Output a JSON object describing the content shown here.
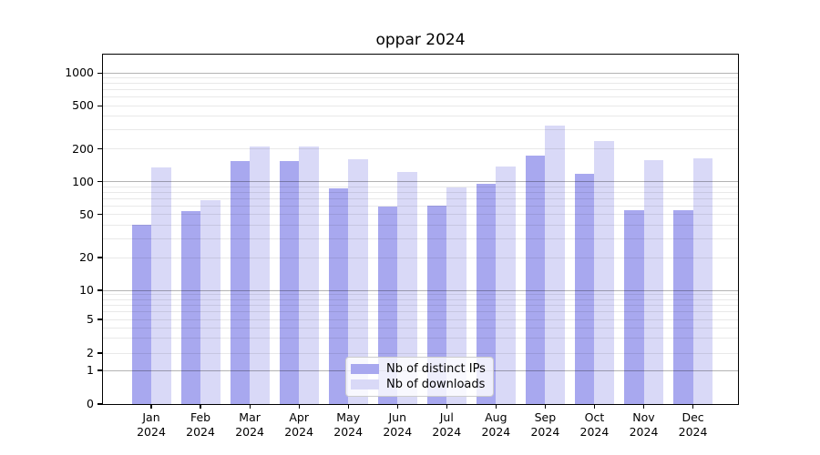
{
  "chart_data": {
    "type": "bar",
    "title": "oppar 2024",
    "categories": [
      "Jan 2024",
      "Feb 2024",
      "Mar 2024",
      "Apr 2024",
      "May 2024",
      "Jun 2024",
      "Jul 2024",
      "Aug 2024",
      "Sep 2024",
      "Oct 2024",
      "Nov 2024",
      "Dec 2024"
    ],
    "series": [
      {
        "name": "Nb of distinct IPs",
        "color": "#a8a8ef",
        "values": [
          40,
          54,
          155,
          155,
          87,
          59,
          60,
          96,
          173,
          118,
          55,
          55
        ]
      },
      {
        "name": "Nb of downloads",
        "color": "#d9d9f7",
        "values": [
          135,
          68,
          210,
          210,
          160,
          124,
          89,
          137,
          330,
          237,
          157,
          164
        ]
      }
    ],
    "yscale": "symlog",
    "y_ticks": [
      0,
      1,
      2,
      5,
      10,
      20,
      50,
      100,
      200,
      500,
      1000
    ],
    "ylim": [
      0,
      1400
    ],
    "xlabel": "",
    "ylabel": "",
    "grid": true,
    "legend_position": "lower center"
  },
  "colors": {
    "bar_distinct_ips": "#a8a8ef",
    "bar_downloads": "#d9d9f7",
    "grid_major": "#b3b3b3",
    "grid_minor": "#e9e9e9",
    "spine": "#000000",
    "legend_background": "rgba(255,255,255,0.8)",
    "legend_border": "#cccccc"
  }
}
